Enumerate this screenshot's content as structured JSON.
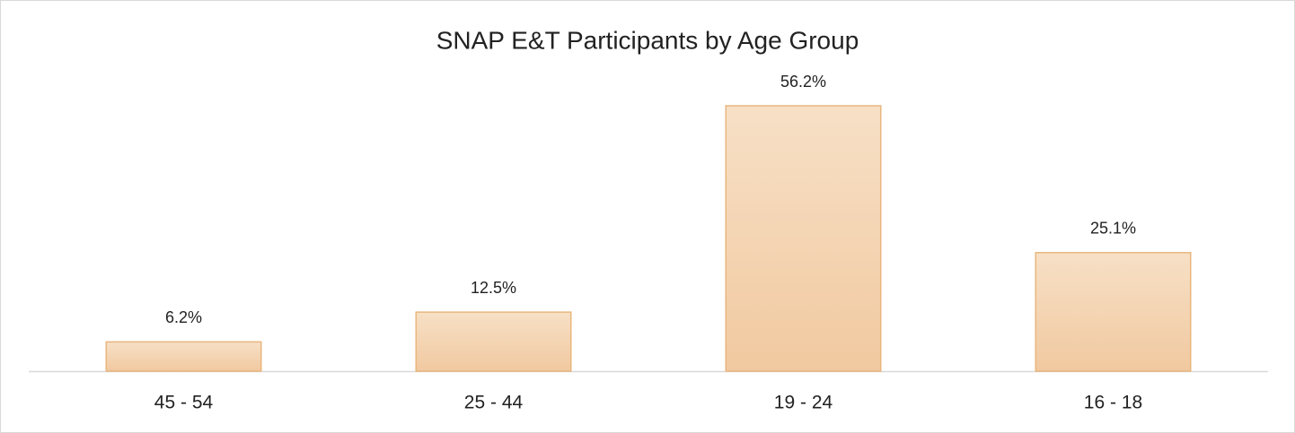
{
  "chart_data": {
    "type": "bar",
    "title": "SNAP E&T Participants by Age Group",
    "categories": [
      "45 - 54",
      "25 - 44",
      "19 - 24",
      "16 - 18"
    ],
    "values": [
      6.2,
      12.5,
      56.2,
      25.1
    ],
    "value_labels": [
      "6.2%",
      "12.5%",
      "56.2%",
      "25.1%"
    ],
    "color": "#f5d6b3"
  }
}
